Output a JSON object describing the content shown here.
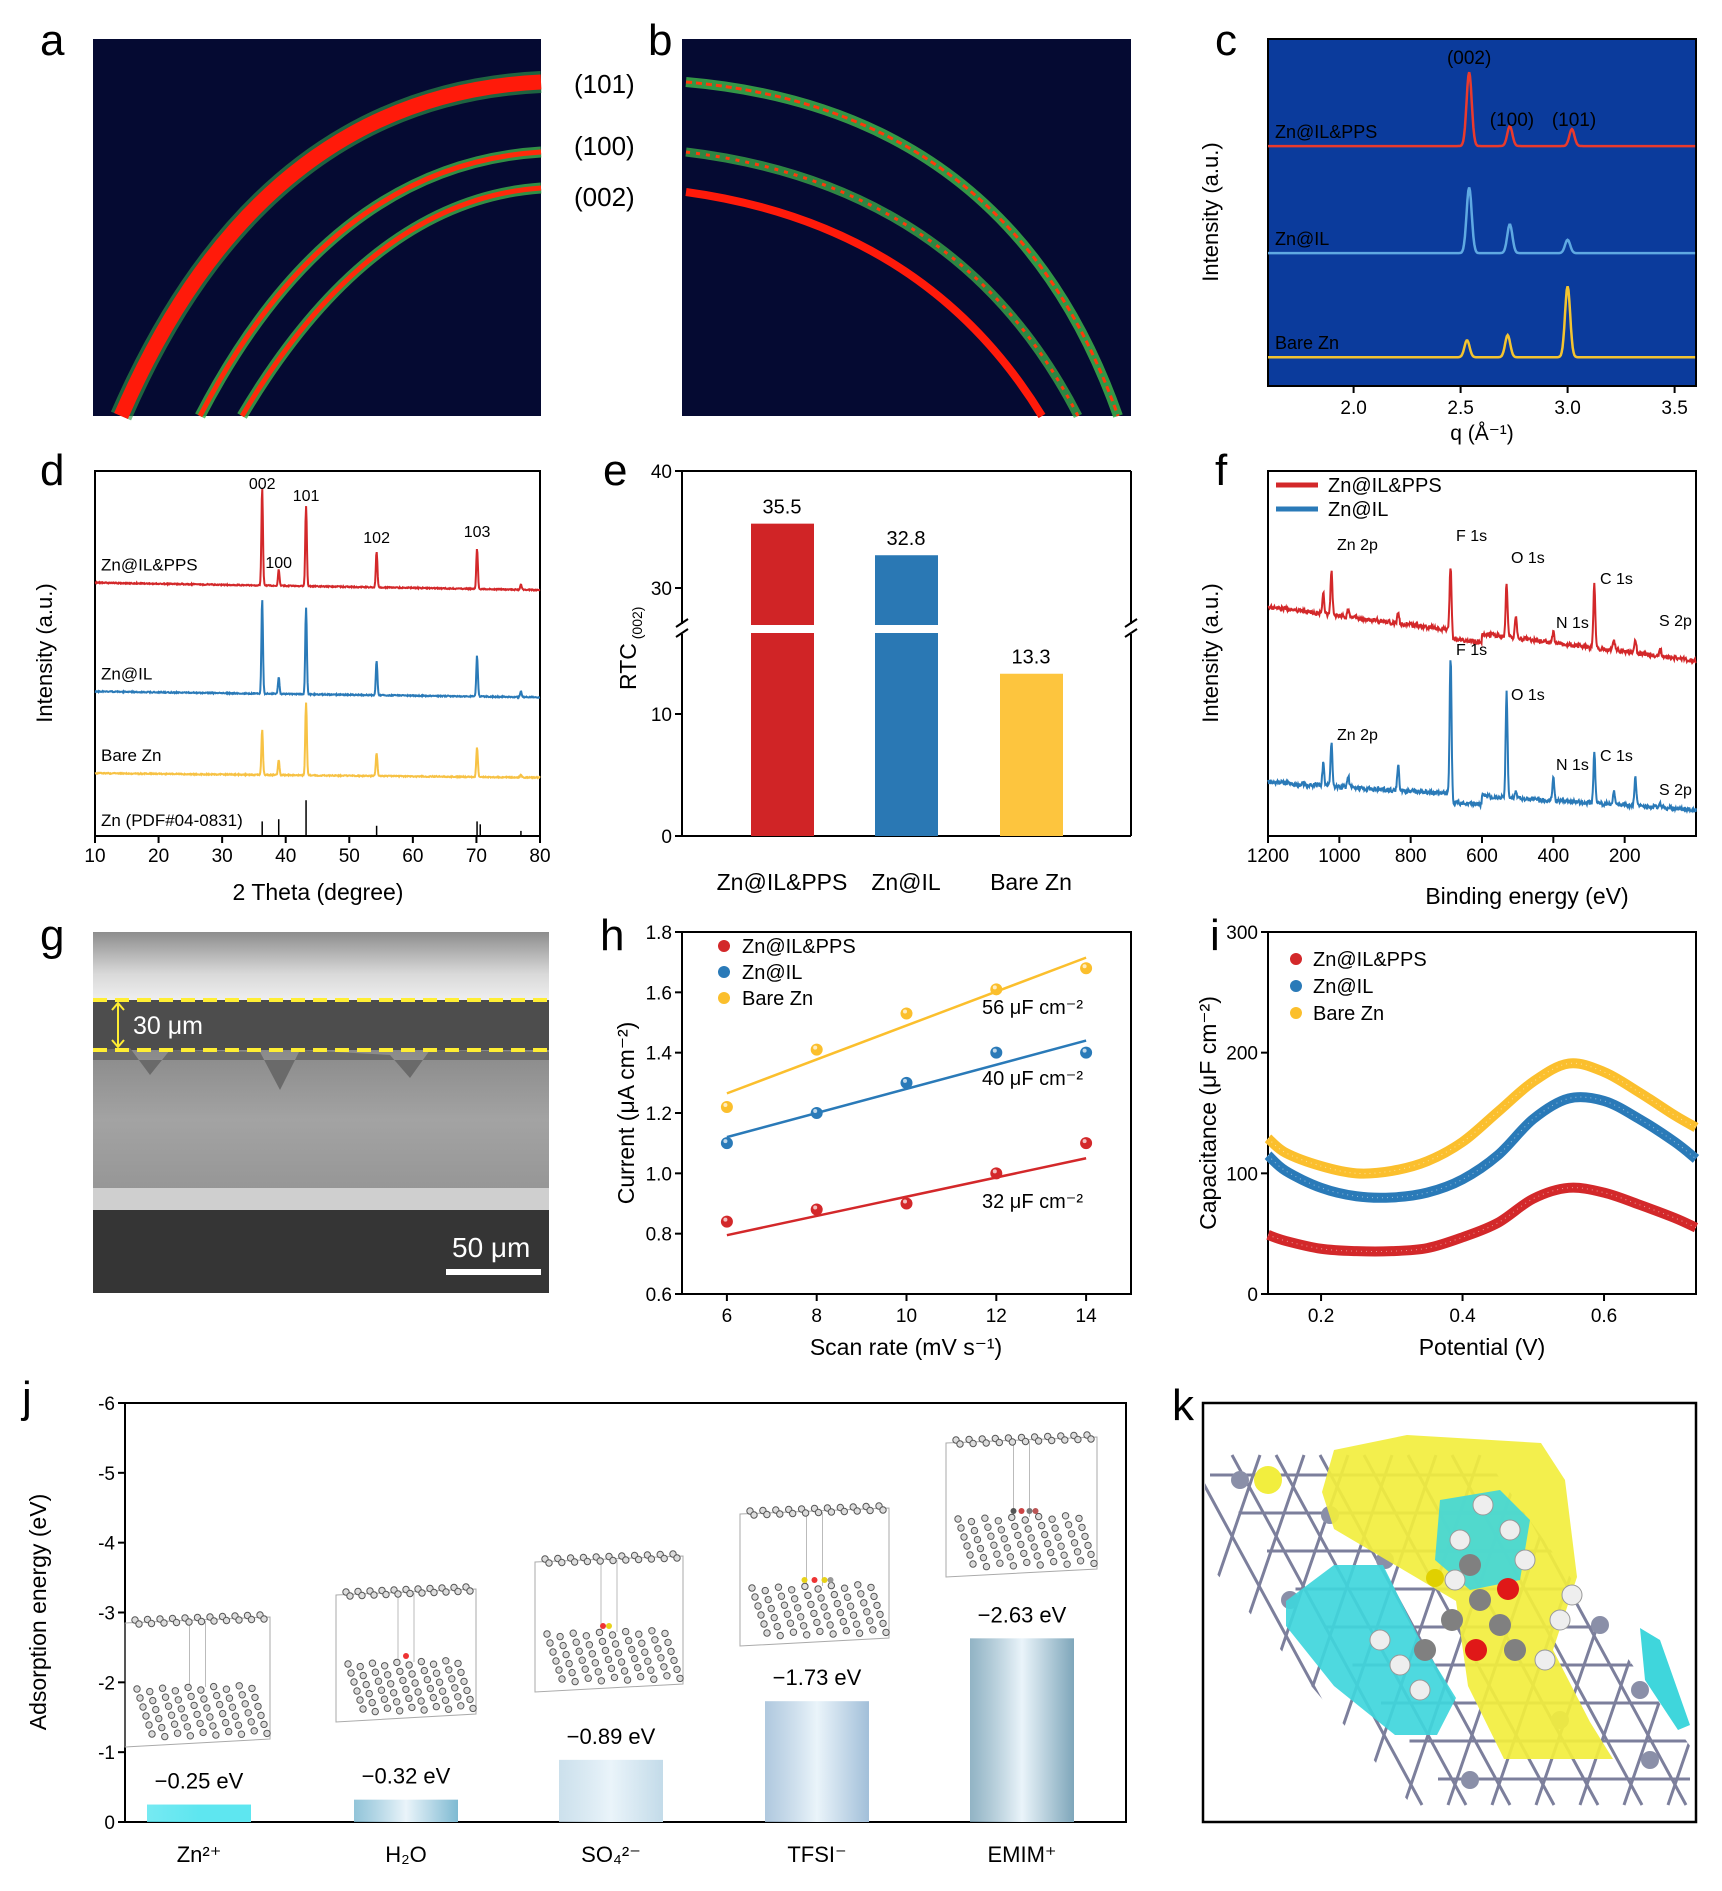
{
  "panel_labels": {
    "a": "a",
    "b": "b",
    "c": "c",
    "d": "d",
    "e": "e",
    "f": "f",
    "g": "g",
    "h": "h",
    "i": "i",
    "j": "j",
    "k": "k"
  },
  "panel_a": {
    "ring_labels": [
      "(101)",
      "(100)",
      "(002)"
    ]
  },
  "panel_g": {
    "layer_thickness": "30 μm",
    "scale_bar": "50 μm"
  },
  "chart_data": [
    {
      "panel": "c",
      "type": "line",
      "xlabel": "q (Å⁻¹)",
      "ylabel": "Intensity (a.u.)",
      "xlim": [
        1.6,
        3.6
      ],
      "ylim": [
        0,
        4.7
      ],
      "xticks": [
        "2.0",
        "2.5",
        "3.0",
        "3.5"
      ],
      "background": "#0b3b9c",
      "peak_labels": [
        {
          "text": "(002)",
          "q": 2.54
        },
        {
          "text": "(100)",
          "q": 2.74
        },
        {
          "text": "(101)",
          "q": 3.03
        }
      ],
      "series": [
        {
          "name": "Zn@IL&PPS",
          "color": "#ea3a2c",
          "offset": 3.25,
          "peaks": [
            [
              2.54,
              1.0
            ],
            [
              2.73,
              0.27
            ],
            [
              3.02,
              0.23
            ]
          ]
        },
        {
          "name": "Zn@IL",
          "color": "#5fa9e2",
          "offset": 1.8,
          "peaks": [
            [
              2.54,
              0.89
            ],
            [
              2.73,
              0.39
            ],
            [
              3.0,
              0.18
            ]
          ]
        },
        {
          "name": "Bare Zn",
          "color": "#f4c430",
          "offset": 0.39,
          "peaks": [
            [
              2.53,
              0.23
            ],
            [
              2.72,
              0.3
            ],
            [
              3.0,
              0.96
            ]
          ]
        }
      ]
    },
    {
      "panel": "d",
      "type": "line",
      "xlabel": "2 Theta (degree)",
      "ylabel": "Intensity (a.u.)",
      "xlim": [
        10,
        80
      ],
      "ylim": [
        0,
        5
      ],
      "xticks": [
        "10",
        "20",
        "30",
        "40",
        "50",
        "60",
        "70",
        "80"
      ],
      "peak_labels": [
        {
          "text": "002",
          "x": 36.3
        },
        {
          "text": "100",
          "x": 38.9
        },
        {
          "text": "101",
          "x": 43.2
        },
        {
          "text": "102",
          "x": 54.3
        },
        {
          "text": "103",
          "x": 70.1
        }
      ],
      "series": [
        {
          "name": "Zn@IL&PPS",
          "color": "#d3282a",
          "offset": [
            3.47,
            3.37
          ],
          "peaks": [
            [
              36.3,
              1.34
            ],
            [
              38.9,
              0.22
            ],
            [
              43.2,
              1.1
            ],
            [
              54.3,
              0.49
            ],
            [
              70.1,
              0.56
            ],
            [
              77.0,
              0.07
            ]
          ]
        },
        {
          "name": "Zn@IL",
          "color": "#2a7ab8",
          "offset": [
            1.98,
            1.9
          ],
          "peaks": [
            [
              36.3,
              1.3
            ],
            [
              38.9,
              0.23
            ],
            [
              43.2,
              1.19
            ],
            [
              54.3,
              0.47
            ],
            [
              70.1,
              0.56
            ],
            [
              77.0,
              0.08
            ]
          ]
        },
        {
          "name": "Bare Zn",
          "color": "#f7c244",
          "offset": [
            0.86,
            0.8
          ],
          "peaks": [
            [
              36.3,
              0.63
            ],
            [
              38.9,
              0.21
            ],
            [
              43.2,
              1.0
            ],
            [
              54.3,
              0.32
            ],
            [
              70.1,
              0.41
            ],
            [
              77.0,
              0.04
            ]
          ]
        }
      ],
      "reference": {
        "name": "Zn (PDF#04-0831)",
        "lines": [
          [
            36.3,
            0.2
          ],
          [
            38.9,
            0.23
          ],
          [
            43.2,
            0.49
          ],
          [
            54.3,
            0.14
          ],
          [
            70.1,
            0.2
          ],
          [
            70.6,
            0.16
          ],
          [
            77.0,
            0.07
          ]
        ]
      }
    },
    {
      "panel": "e",
      "type": "bar",
      "ylabel": "RTC",
      "ylabel_sub": "(002)",
      "categories": [
        "Zn@IL&PPS",
        "Zn@IL",
        "Bare Zn"
      ],
      "values": [
        35.5,
        32.8,
        13.3
      ],
      "value_labels": [
        "35.5",
        "32.8",
        "13.3"
      ],
      "colors": [
        "#d02426",
        "#2a78b4",
        "#fdc53e"
      ],
      "yticks": [
        "0",
        "10",
        "30",
        "40"
      ],
      "axis_break": [
        17,
        26.4
      ]
    },
    {
      "panel": "f",
      "type": "line",
      "xlabel": "Binding energy (eV)",
      "ylabel": "Intensity (a.u.)",
      "xlim": [
        1200,
        0
      ],
      "ylim": [
        0,
        5
      ],
      "xticks": [
        "1200",
        "1000",
        "800",
        "600",
        "400",
        "200"
      ],
      "legend": "top-left",
      "series": [
        {
          "name": "Zn@IL&PPS",
          "color": "#d3282a",
          "offset": [
            3.14,
            2.4
          ],
          "peaks": [
            [
              1045,
              0.3
            ],
            [
              1022,
              0.62
            ],
            [
              975,
              0.1
            ],
            [
              835,
              0.15
            ],
            [
              688,
              1.0
            ],
            [
              531,
              0.75
            ],
            [
              505,
              0.3
            ],
            [
              400,
              0.15
            ],
            [
              285,
              0.88
            ],
            [
              230,
              0.15
            ],
            [
              170,
              0.2
            ],
            [
              100,
              0.1
            ]
          ],
          "labels": [
            "Zn 2p",
            "F 1s",
            "O 1s",
            "C 1s",
            "N 1s",
            "S 2p"
          ]
        },
        {
          "name": "Zn@IL",
          "color": "#2a7ab8",
          "offset": [
            0.74,
            0.36
          ],
          "peaks": [
            [
              1045,
              0.3
            ],
            [
              1022,
              0.6
            ],
            [
              975,
              0.15
            ],
            [
              835,
              0.35
            ],
            [
              688,
              2.0
            ],
            [
              531,
              1.45
            ],
            [
              505,
              0.1
            ],
            [
              400,
              0.3
            ],
            [
              285,
              0.7
            ],
            [
              230,
              0.2
            ],
            [
              170,
              0.4
            ],
            [
              100,
              0.05
            ]
          ],
          "labels": [
            "Zn 2p",
            "F 1s",
            "O 1s",
            "N 1s",
            "C 1s",
            "S 2p"
          ]
        }
      ]
    },
    {
      "panel": "h",
      "type": "scatter",
      "xlabel": "Scan rate (mV s⁻¹)",
      "ylabel": "Current (μA cm⁻²)",
      "xlim": [
        5,
        15
      ],
      "ylim": [
        0.6,
        1.8
      ],
      "xticks": [
        "6",
        "8",
        "10",
        "12",
        "14"
      ],
      "yticks": [
        "0.6",
        "0.8",
        "1.0",
        "1.2",
        "1.4",
        "1.6",
        "1.8"
      ],
      "x": [
        6,
        8,
        10,
        12,
        14
      ],
      "legend": "top-left",
      "series": [
        {
          "name": "Zn@IL&PPS",
          "color": "#d3282a",
          "y": [
            0.84,
            0.88,
            0.9,
            1.0,
            1.1
          ],
          "fit": [
            0.795,
            1.05
          ],
          "slope_label": "32 μF cm⁻²"
        },
        {
          "name": "Zn@IL",
          "color": "#2a7ab8",
          "y": [
            1.1,
            1.2,
            1.3,
            1.4,
            1.4
          ],
          "fit": [
            1.12,
            1.44
          ],
          "slope_label": "40 μF cm⁻²"
        },
        {
          "name": "Bare Zn",
          "color": "#fbbf2d",
          "y": [
            1.22,
            1.41,
            1.53,
            1.61,
            1.68
          ],
          "fit": [
            1.265,
            1.715
          ],
          "slope_label": "56 μF cm⁻²"
        }
      ]
    },
    {
      "panel": "i",
      "type": "line",
      "xlabel": "Potential (V)",
      "ylabel": "Capacitance (μF cm⁻²)",
      "xlim": [
        0.125,
        0.73
      ],
      "ylim": [
        0,
        300
      ],
      "xticks": [
        "0.2",
        "0.4",
        "0.6"
      ],
      "yticks": [
        "0",
        "100",
        "200",
        "300"
      ],
      "legend": "top-left",
      "x": [
        0.125,
        0.15,
        0.2,
        0.25,
        0.3,
        0.35,
        0.4,
        0.45,
        0.5,
        0.55,
        0.6,
        0.65,
        0.7,
        0.73
      ],
      "series": [
        {
          "name": "Zn@IL&PPS",
          "color": "#d3282a",
          "y": [
            49,
            44,
            37.5,
            35.5,
            35.5,
            38,
            47,
            59,
            79,
            88,
            84,
            74,
            63,
            55
          ]
        },
        {
          "name": "Zn@IL",
          "color": "#2a7ab8",
          "y": [
            115,
            102,
            88,
            81,
            80,
            84,
            95,
            115,
            145,
            162,
            160,
            145,
            126,
            112
          ]
        },
        {
          "name": "Bare Zn",
          "color": "#fbbf2d",
          "y": [
            129,
            117,
            106,
            100,
            102,
            110,
            126,
            151,
            176,
            191,
            184,
            167,
            148,
            138
          ]
        }
      ]
    },
    {
      "panel": "j",
      "type": "bar",
      "ylabel": "Adsorption energy (eV)",
      "ylim": [
        0,
        -6
      ],
      "yticks": [
        "0",
        "-1",
        "-2",
        "-3",
        "-4",
        "-5",
        "-6"
      ],
      "categories": [
        "Zn²⁺",
        "H₂O",
        "SO₄²⁻",
        "TFSI⁻",
        "EMIM⁺"
      ],
      "values": [
        -0.25,
        -0.32,
        -0.89,
        -1.73,
        -2.63
      ],
      "value_labels": [
        "−0.25 eV",
        "−0.32 eV",
        "−0.89 eV",
        "−1.73 eV",
        "−2.63 eV"
      ],
      "colors": [
        "#5ee6f0",
        "#7fbad2",
        "#c3dbe9",
        "#a2bfd9",
        "#7ea6ba"
      ]
    }
  ]
}
